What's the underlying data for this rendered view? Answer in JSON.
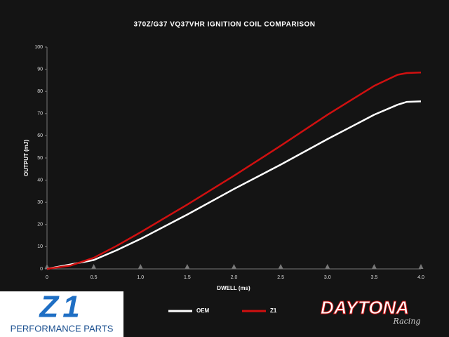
{
  "chart_data": {
    "type": "line",
    "title": "370Z/G37 VQ37VHR IGNITION COIL COMPARISON",
    "x_label": "DWELL (ms)",
    "y_label": "OUTPUT (mJ)",
    "x": [
      0,
      0.25,
      0.5,
      0.75,
      1,
      1.5,
      2,
      2.5,
      3,
      3.25,
      3.5,
      3.75,
      3.85,
      4
    ],
    "series": [
      {
        "name": "OEM",
        "color": "#ffffff",
        "values": [
          0,
          2,
          4,
          8.5,
          13.5,
          24.5,
          36,
          47,
          58.5,
          64,
          69.5,
          74,
          75.3,
          75.5
        ]
      },
      {
        "name": "Z1",
        "color": "#d01010",
        "values": [
          0,
          1.5,
          5,
          10.5,
          16.5,
          29,
          42,
          55.5,
          69.5,
          76,
          82.5,
          87.5,
          88.3,
          88.5
        ]
      }
    ],
    "xlim": [
      0,
      4
    ],
    "xticks": [
      0,
      0.5,
      {
        "value": 1,
        "label": "1.0"
      },
      1.5,
      {
        "value": 2,
        "label": "2.0"
      },
      2.5,
      {
        "value": 3,
        "label": "3.0"
      },
      3.5,
      {
        "value": 4,
        "label": "4.0"
      }
    ],
    "ylim": [
      0,
      100
    ],
    "yticks": [
      0,
      10,
      20,
      30,
      40,
      50,
      60,
      70,
      80,
      90,
      100
    ],
    "grid": false,
    "legend": "bottom"
  },
  "logos": {
    "left_mark": "Z1",
    "left_text": "PERFORMANCE PARTS",
    "right_text": "DAYTONA",
    "right_script": "Racing"
  }
}
